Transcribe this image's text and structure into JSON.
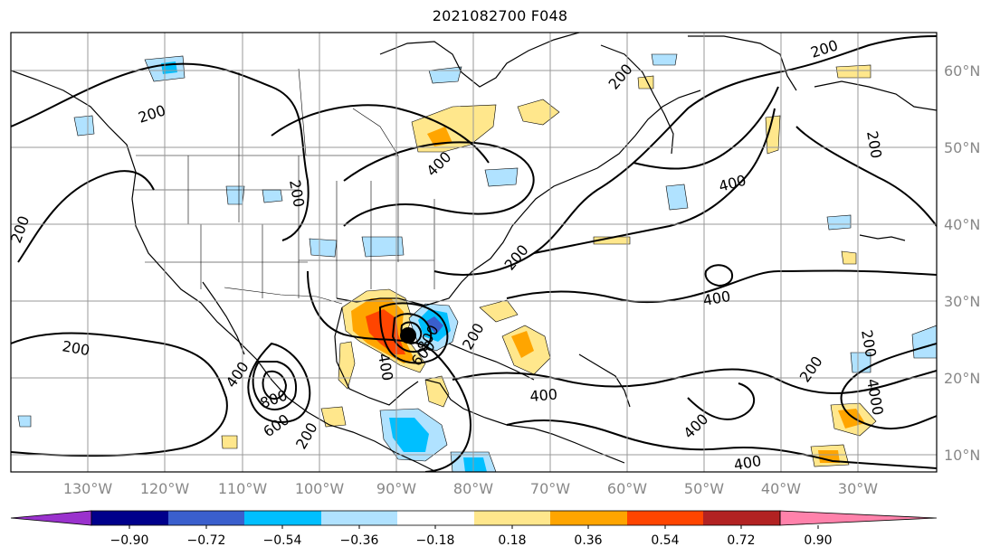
{
  "title": "2021082700 F048",
  "lon_ticks": [
    "130°W",
    "120°W",
    "110°W",
    "100°W",
    "90°W",
    "80°W",
    "70°W",
    "60°W",
    "50°W",
    "40°W",
    "30°W"
  ],
  "lat_ticks": [
    "60°N",
    "50°N",
    "40°N",
    "30°N",
    "20°N",
    "10°N"
  ],
  "contour_labels": [
    "200",
    "400",
    "600",
    "800",
    "4000"
  ],
  "colorbar": {
    "labels": [
      "−0.90",
      "−0.72",
      "−0.54",
      "−0.36",
      "−0.18",
      "0.18",
      "0.36",
      "0.54",
      "0.72",
      "0.90"
    ],
    "colors": [
      "#9a32cd",
      "#00008b",
      "#3a5fcd",
      "#00bfff",
      "#b0e2ff",
      "#ffffff",
      "#ffe78c",
      "#ffa500",
      "#ff4500",
      "#b22222",
      "#ff82ab"
    ]
  }
}
